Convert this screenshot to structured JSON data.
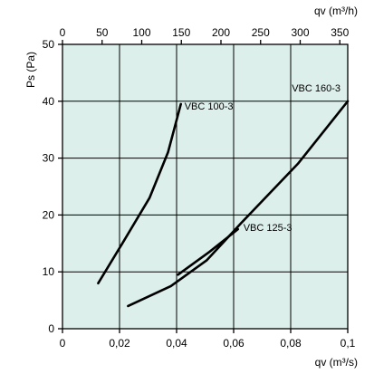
{
  "chart_data": {
    "type": "line",
    "xlabel_bottom": "qv (m³/s)",
    "xlabel_top": "qv (m³/h)",
    "ylabel": "Ps (Pa)",
    "xlim_bottom": [
      0,
      0.1
    ],
    "xlim_top": [
      0,
      360
    ],
    "ylim": [
      0,
      50
    ],
    "xticks_bottom": [
      "0",
      "0,02",
      "0,04",
      "0,06",
      "0,08",
      "0,1"
    ],
    "xticks_bottom_values": [
      0,
      0.02,
      0.04,
      0.06,
      0.08,
      0.1
    ],
    "xticks_top": [
      "0",
      "50",
      "100",
      "150",
      "200",
      "250",
      "300",
      "350"
    ],
    "xticks_top_values": [
      0,
      50,
      100,
      150,
      200,
      250,
      300,
      350
    ],
    "yticks": [
      "0",
      "10",
      "20",
      "30",
      "40",
      "50"
    ],
    "yticks_values": [
      0,
      10,
      20,
      30,
      40,
      50
    ],
    "grid": true,
    "series": [
      {
        "name": "VBC 100-3",
        "x": [
          0.0125,
          0.021,
          0.0305,
          0.037,
          0.0415
        ],
        "y": [
          8,
          15,
          23,
          31,
          39.5
        ]
      },
      {
        "name": "VBC 125-3",
        "x": [
          0.0405,
          0.0515,
          0.0615
        ],
        "y": [
          9.5,
          13.5,
          17.5
        ]
      },
      {
        "name": "VBC 160-3",
        "x": [
          0.023,
          0.038,
          0.0505,
          0.0625,
          0.0825,
          0.1
        ],
        "y": [
          4,
          7.5,
          12,
          18.5,
          29,
          40
        ]
      }
    ]
  },
  "colors": {
    "plot_background": "#dcefea",
    "grid": "#000000",
    "line": "#000000"
  }
}
